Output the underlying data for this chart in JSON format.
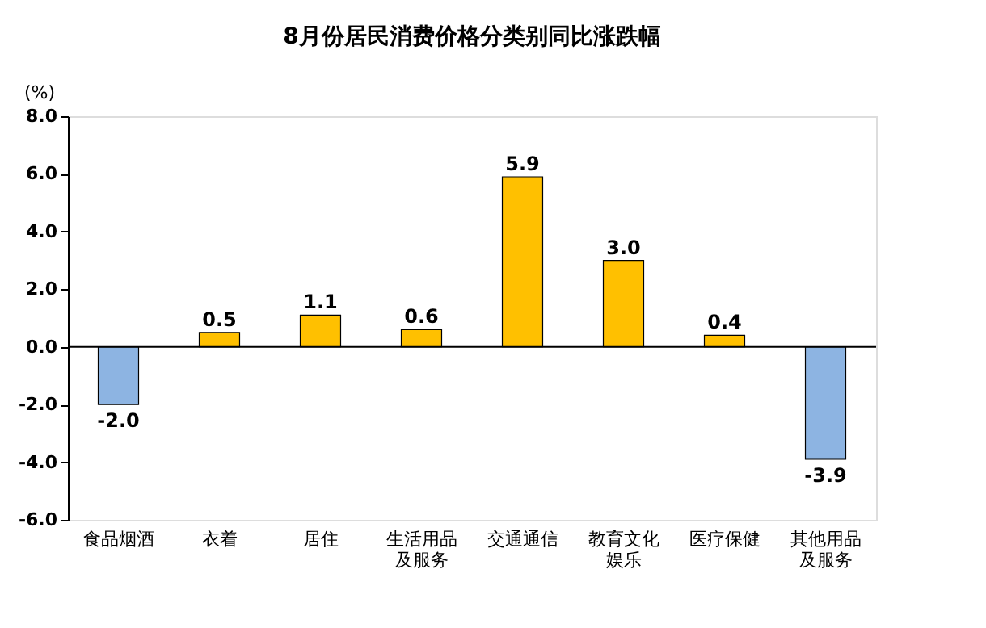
{
  "chart_data": {
    "type": "bar",
    "title": "8月份居民消费价格分类别同比涨跌幅",
    "ylabel": "(%)",
    "categories": [
      "食品烟酒",
      "衣着",
      "居住",
      "生活用品及服务",
      "交通通信",
      "教育文化娱乐",
      "医疗保健",
      "其他用品及服务"
    ],
    "values": [
      -2.0,
      0.5,
      1.1,
      0.6,
      5.9,
      3.0,
      0.4,
      -3.9
    ],
    "colors": [
      "#8db4e2",
      "#ffc000",
      "#ffc000",
      "#ffc000",
      "#ffc000",
      "#ffc000",
      "#ffc000",
      "#8db4e2"
    ],
    "value_labels": [
      "-2.0",
      "0.5",
      "1.1",
      "0.6",
      "5.9",
      "3.0",
      "0.4",
      "-3.9"
    ],
    "ylim": [
      -6.0,
      8.0
    ],
    "yticks": [
      {
        "value": -6,
        "label": "-6.0"
      },
      {
        "value": -4,
        "label": "-4.0"
      },
      {
        "value": -2,
        "label": "-2.0"
      },
      {
        "value": 0,
        "label": "0.0"
      },
      {
        "value": 2,
        "label": "2.0"
      },
      {
        "value": 4,
        "label": "4.0"
      },
      {
        "value": 6,
        "label": "6.0"
      },
      {
        "value": 8,
        "label": "8.0"
      }
    ],
    "ref_lines": [
      {
        "axis": "y",
        "value": 0,
        "color": "#000000"
      }
    ],
    "grid": false
  }
}
